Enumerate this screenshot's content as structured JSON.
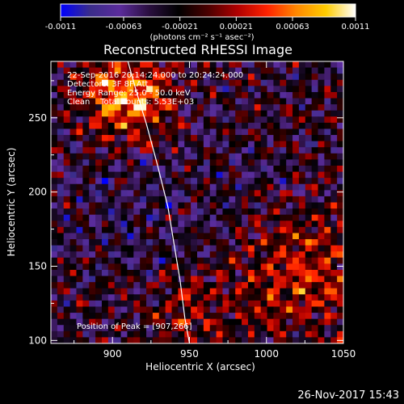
{
  "chart_data": {
    "type": "heatmap",
    "title": "Reconstructed RHESSI Image",
    "xlabel": "Heliocentric X (arcsec)",
    "ylabel": "Heliocentric Y (arcsec)",
    "xlim": [
      860,
      1050
    ],
    "ylim": [
      98,
      288
    ],
    "xticks": [
      "900",
      "950",
      "1000",
      "1050"
    ],
    "xtick_values": [
      900,
      950,
      1000,
      1050
    ],
    "yticks": [
      "100",
      "150",
      "200",
      "250"
    ],
    "ytick_values": [
      100,
      150,
      200,
      250
    ],
    "colorbar": {
      "min": -0.0011,
      "max": 0.0011,
      "ticks": [
        "-0.0011",
        "-0.00063",
        "-0.00021",
        "0.00021",
        "0.00063",
        "0.0011"
      ],
      "tick_values": [
        -0.0011,
        -0.00063,
        -0.00021,
        0.00021,
        0.00063,
        0.0011
      ],
      "unit_label": "(photons cm⁻² s⁻¹ asec⁻²)"
    },
    "colormap": [
      "#0000ff",
      "#3a2d8a",
      "#5b2c9c",
      "#2a0f3f",
      "#000000",
      "#4a0000",
      "#b00000",
      "#ff2200",
      "#ff8800",
      "#ffcc00",
      "#ffffff"
    ],
    "annotations": [
      "22-Sep-2016 20:14:24.000 to 20:24:24.000",
      "Detectors: 3F 8F Att",
      "Energy Range: 25.0 - 50.0 keV",
      "Clean    Total counts: 5.53E+03"
    ],
    "peak_label": "Position of Peak = [907,266]",
    "peak": [
      907,
      266
    ],
    "limb_curve": [
      [
        910,
        288
      ],
      [
        916,
        266
      ],
      [
        922,
        246
      ],
      [
        929,
        219
      ],
      [
        936,
        190
      ],
      [
        940,
        165
      ],
      [
        944,
        140
      ],
      [
        947,
        115
      ],
      [
        950,
        98
      ]
    ]
  },
  "footer": {
    "date": "26-Nov-2017 15:43"
  }
}
